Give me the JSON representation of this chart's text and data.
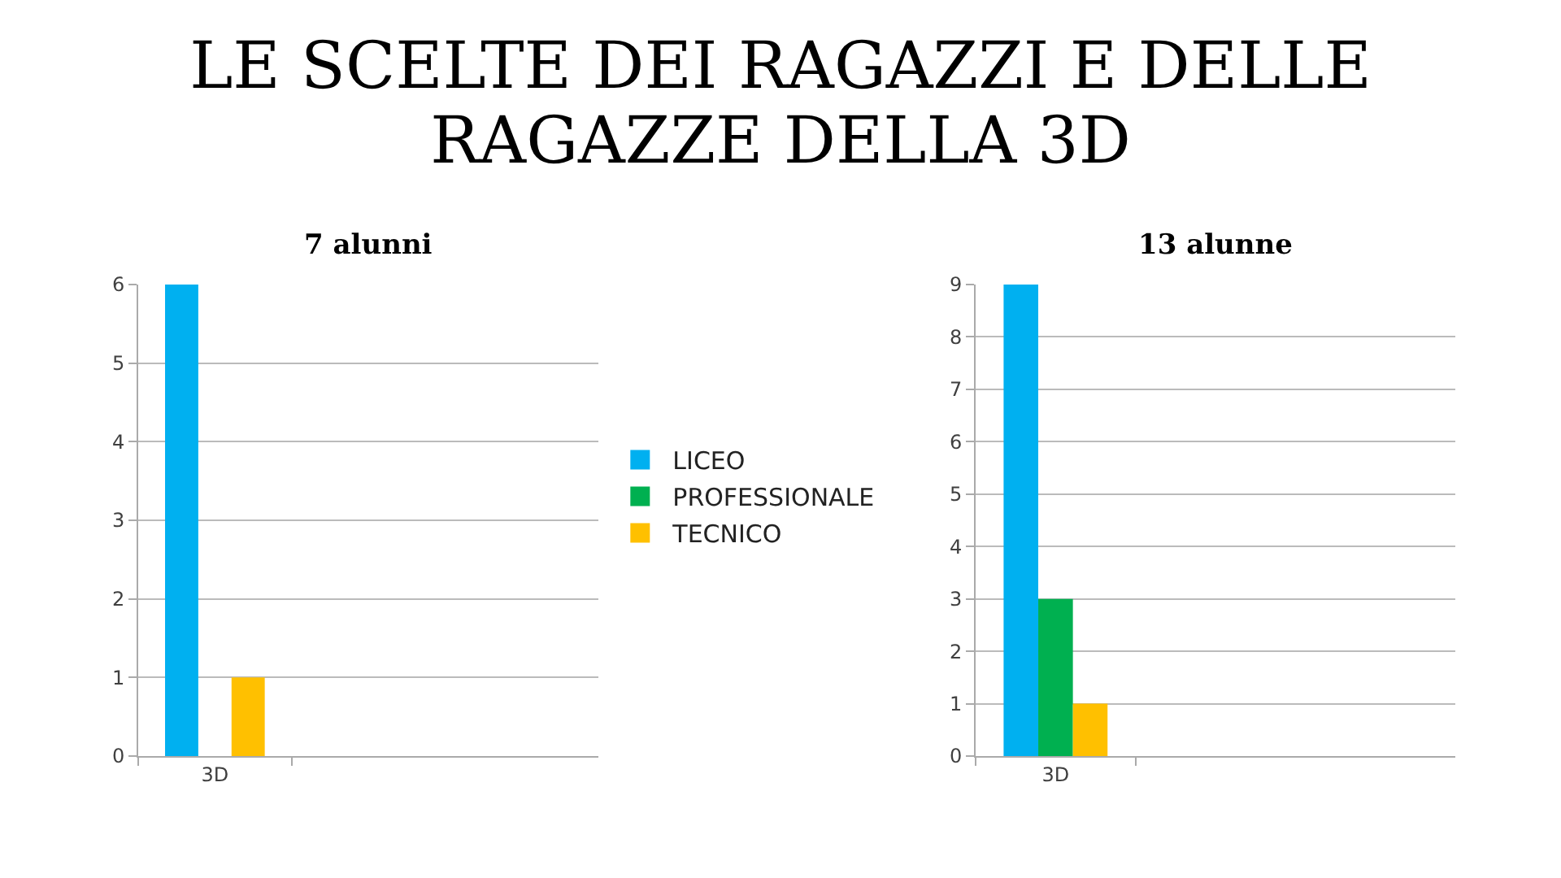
{
  "chart_data": [
    {
      "type": "bar",
      "title": "LE SCELTE DEI RAGAZZI E DELLE RAGAZZE DELLA 3D",
      "subtitle": "7 alunni",
      "categories": [
        "3D",
        null,
        null
      ],
      "series": [
        {
          "name": "LICEO",
          "color": "#00b0f0",
          "values": [
            6,
            null,
            null
          ]
        },
        {
          "name": "PROFESSIONALE",
          "color": "#00b050",
          "values": [
            0,
            null,
            null
          ]
        },
        {
          "name": "TECNICO",
          "color": "#ffc000",
          "values": [
            1,
            null,
            null
          ]
        }
      ],
      "ylim": [
        0,
        6
      ],
      "yticks": [
        0,
        1,
        2,
        3,
        4,
        5,
        6
      ],
      "grid": "y",
      "legend": "right"
    },
    {
      "type": "bar",
      "title": "13 alunne",
      "categories": [
        "3D",
        null,
        null
      ],
      "series": [
        {
          "color": "#00b0f0",
          "values": [
            9,
            null,
            null
          ]
        },
        {
          "color": "#00b050",
          "values": [
            3,
            null,
            null
          ]
        },
        {
          "color": "#ffc000",
          "values": [
            1,
            null,
            null
          ]
        }
      ],
      "ylim": [
        0,
        9
      ],
      "yticks": [
        0,
        1,
        2,
        3,
        4,
        5,
        6,
        7,
        8,
        9
      ],
      "grid": "y"
    }
  ]
}
